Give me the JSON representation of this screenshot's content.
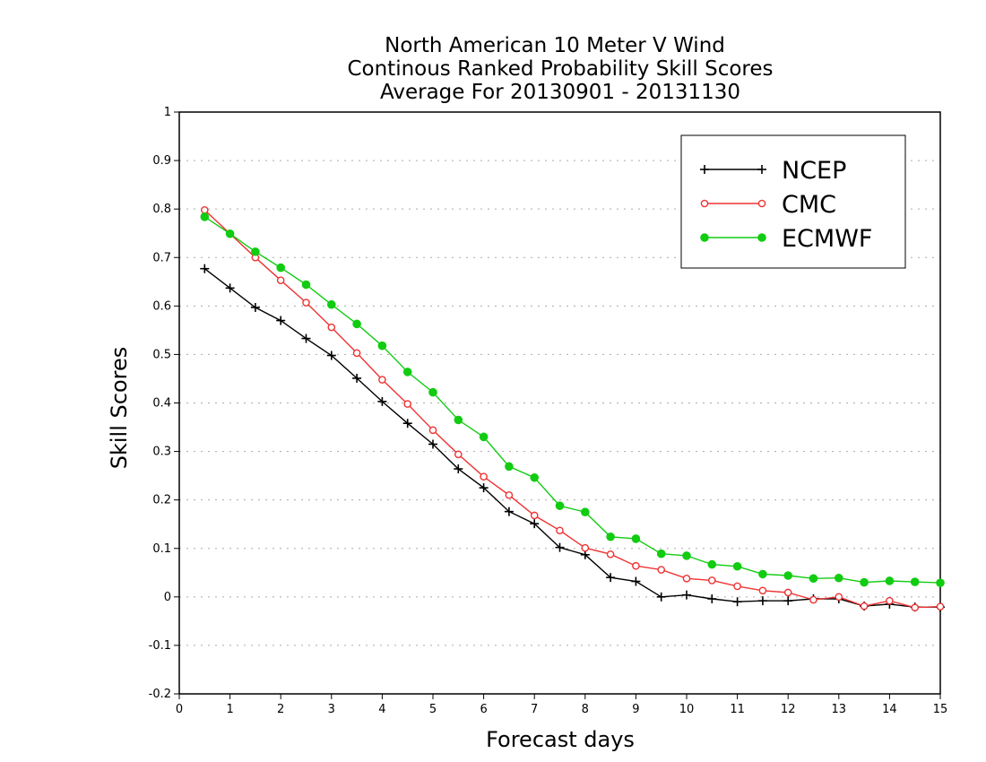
{
  "chart_data": {
    "type": "line",
    "title": [
      "North American 10 Meter V Wind",
      "Continous Ranked Probability Skill Scores",
      "Average For 20130901 - 20131130"
    ],
    "xlabel": "Forecast days",
    "ylabel": "Skill Scores",
    "xlim": [
      0,
      15
    ],
    "ylim": [
      -0.2,
      1
    ],
    "xticks": [
      "0",
      "1",
      "2",
      "3",
      "4",
      "5",
      "6",
      "7",
      "8",
      "9",
      "10",
      "11",
      "12",
      "13",
      "14",
      "15"
    ],
    "yticks": [
      "-0.2",
      "-0.1",
      "0",
      "0.1",
      "0.2",
      "0.3",
      "0.4",
      "0.5",
      "0.6",
      "0.7",
      "0.8",
      "0.9",
      "1"
    ],
    "grid": "horizontal dotted",
    "legend_position": "top-right",
    "x": [
      0.5,
      1,
      1.5,
      2,
      2.5,
      3,
      3.5,
      4,
      4.5,
      5,
      5.5,
      6,
      6.5,
      7,
      7.5,
      8,
      8.5,
      9,
      9.5,
      10,
      10.5,
      11,
      11.5,
      12,
      12.5,
      13,
      13.5,
      14,
      14.5,
      15
    ],
    "series": [
      {
        "name": "NCEP",
        "color": "#000000",
        "marker": "plus",
        "values": [
          0.677,
          0.637,
          0.597,
          0.57,
          0.533,
          0.498,
          0.451,
          0.403,
          0.358,
          0.315,
          0.264,
          0.225,
          0.176,
          0.151,
          0.102,
          0.087,
          0.04,
          0.032,
          0.0,
          0.004,
          -0.004,
          -0.01,
          -0.008,
          -0.008,
          -0.004,
          -0.004,
          -0.019,
          -0.015,
          -0.021,
          -0.021
        ]
      },
      {
        "name": "CMC",
        "color": "#ee3333",
        "marker": "open-circle",
        "values": [
          0.798,
          0.749,
          0.7,
          0.653,
          0.607,
          0.556,
          0.503,
          0.448,
          0.398,
          0.344,
          0.294,
          0.248,
          0.21,
          0.168,
          0.137,
          0.101,
          0.088,
          0.064,
          0.056,
          0.038,
          0.034,
          0.022,
          0.013,
          0.009,
          -0.006,
          0.0,
          -0.019,
          -0.008,
          -0.022,
          -0.02
        ]
      },
      {
        "name": "ECMWF",
        "color": "#11cc11",
        "marker": "filled-circle",
        "values": [
          0.784,
          0.749,
          0.712,
          0.679,
          0.644,
          0.603,
          0.563,
          0.518,
          0.464,
          0.422,
          0.365,
          0.33,
          0.269,
          0.246,
          0.188,
          0.175,
          0.124,
          0.12,
          0.089,
          0.085,
          0.067,
          0.063,
          0.047,
          0.044,
          0.038,
          0.039,
          0.03,
          0.033,
          0.031,
          0.029
        ]
      }
    ]
  }
}
